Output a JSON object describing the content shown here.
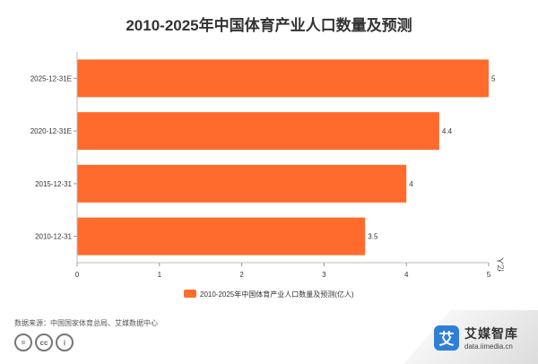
{
  "title": "2010-2025年中国体育产业人口数量及预测",
  "source": "数据来源：中国国家体育总局、艾媒数据中心",
  "brand": {
    "name": "艾媒智库",
    "url": "data.iimedia.cn",
    "logo_char": "艾"
  },
  "licence_icons": [
    "equal-icon",
    "cc-icon",
    "person-icon"
  ],
  "licence_glyphs": [
    "=",
    "cc",
    "i"
  ],
  "colors": {
    "bar": "#ff6b2c",
    "axis": "#cccccc",
    "text": "#333333"
  },
  "chart_data": {
    "type": "bar",
    "orientation": "horizontal",
    "title": "2010-2025年中国体育产业人口数量及预测",
    "categories": [
      "2025-12-31E",
      "2020-12-31E",
      "2015-12-31",
      "2010-12-31"
    ],
    "series": [
      {
        "name": "2010-2025年中国体育产业人口数量及预测(亿人)",
        "values": [
          5,
          4.4,
          4,
          3.5
        ]
      }
    ],
    "xlim": [
      0,
      5
    ],
    "xticks": [
      0,
      1,
      2,
      3,
      4,
      5
    ],
    "unit_label": "亿人",
    "grid": false,
    "legend_position": "bottom"
  }
}
